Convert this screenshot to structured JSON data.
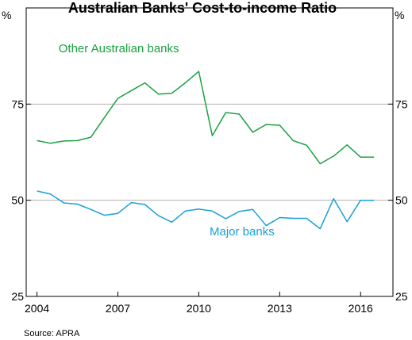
{
  "chart_data": {
    "type": "line",
    "title": "Australian Banks' Cost-to-income Ratio",
    "unit_left": "%",
    "unit_right": "%",
    "source": "Source:   APRA",
    "xlim": [
      2003.6,
      2017.2
    ],
    "ylim": [
      25,
      100
    ],
    "x_ticks": [
      2004,
      2007,
      2010,
      2013,
      2016
    ],
    "y_ticks": [
      25,
      50,
      75
    ],
    "gridlines": [
      50,
      75
    ],
    "colors": {
      "other": "#1aa142",
      "major": "#1aa0d6",
      "grid": "#b0b0b0",
      "axis": "#000000"
    },
    "series": [
      {
        "name": "Other Australian banks",
        "key": "other",
        "x": [
          2004.0,
          2004.5,
          2005.0,
          2005.5,
          2006.0,
          2006.5,
          2007.0,
          2007.5,
          2008.0,
          2008.5,
          2009.0,
          2009.5,
          2010.0,
          2010.5,
          2011.0,
          2011.5,
          2012.0,
          2012.5,
          2013.0,
          2013.5,
          2014.0,
          2014.5,
          2015.0,
          2015.5,
          2016.0,
          2016.5
        ],
        "values": [
          65.5,
          64.8,
          65.4,
          65.5,
          66.4,
          71.5,
          76.5,
          78.5,
          80.5,
          77.6,
          77.8,
          80.5,
          83.5,
          66.8,
          72.8,
          72.4,
          67.7,
          69.7,
          69.5,
          65.5,
          64.3,
          59.5,
          61.5,
          64.4,
          61.2,
          61.2
        ]
      },
      {
        "name": "Major banks",
        "key": "major",
        "x": [
          2004.0,
          2004.5,
          2005.0,
          2005.5,
          2006.0,
          2006.5,
          2007.0,
          2007.5,
          2008.0,
          2008.5,
          2009.0,
          2009.5,
          2010.0,
          2010.5,
          2011.0,
          2011.5,
          2012.0,
          2012.5,
          2013.0,
          2013.5,
          2014.0,
          2014.5,
          2015.0,
          2015.5,
          2016.0,
          2016.5
        ],
        "values": [
          52.4,
          51.6,
          49.3,
          49.0,
          47.6,
          46.1,
          46.6,
          49.4,
          48.9,
          46.0,
          44.3,
          47.2,
          47.7,
          47.2,
          45.2,
          47.1,
          47.6,
          43.4,
          45.5,
          45.3,
          45.3,
          42.6,
          50.4,
          44.4,
          50.0,
          50.0
        ]
      }
    ],
    "series_labels": [
      {
        "key": "other",
        "text": "Other Australian banks",
        "x": 2004.8,
        "y": 88.5
      },
      {
        "key": "major",
        "text": "Major banks",
        "x": 2010.4,
        "y": 40.9
      }
    ]
  }
}
